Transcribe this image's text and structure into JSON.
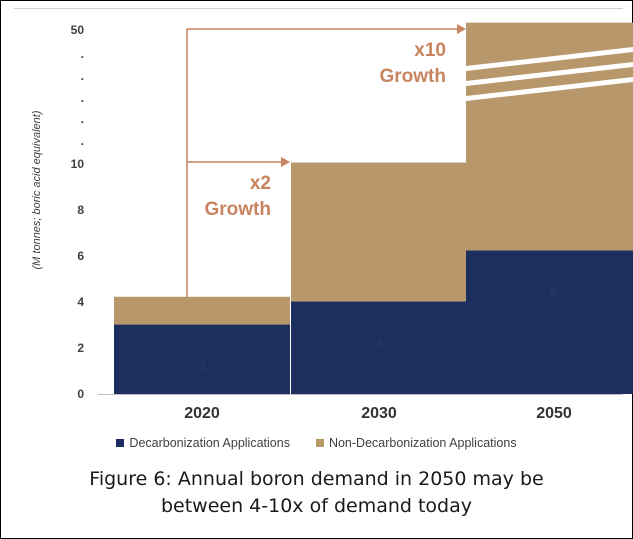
{
  "chart_data": {
    "type": "bar",
    "stacked": true,
    "categories": [
      "2020",
      "2030",
      "2050"
    ],
    "series": [
      {
        "name": "Decarbonization Applications",
        "values": [
          3,
          4,
          6.2
        ],
        "color": "#1c2f5e",
        "labels": [
          "3",
          "4",
          "6"
        ]
      },
      {
        "name": "Non-Decarbonization Applications",
        "values": [
          1.2,
          6,
          44.8
        ],
        "color": "#b8976b"
      }
    ],
    "y_ticks": [
      "0",
      "2",
      "4",
      "6",
      "8",
      "10",
      ".",
      ".",
      ".",
      ".",
      ".",
      "50"
    ],
    "ylabel": "(M tonnes; boric acid equivalent)",
    "axis_break": true,
    "annotations": [
      {
        "line1": "x2",
        "line2": "Growth",
        "color": "#c8845e"
      },
      {
        "line1": "x10",
        "line2": "Growth",
        "color": "#c8845e"
      }
    ],
    "legend_position": "bottom"
  },
  "caption": {
    "line1": "Figure 6: Annual boron demand in 2050 may be",
    "line2": "between 4-10x of demand today"
  }
}
